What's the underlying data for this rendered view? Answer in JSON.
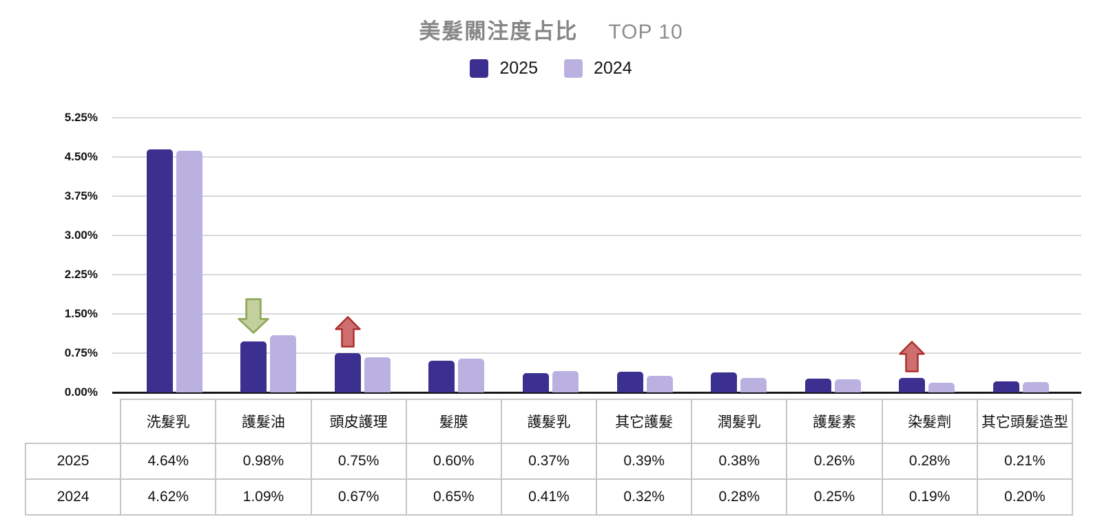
{
  "header": {
    "title_main": "美髮關注度占比",
    "title_suffix": "TOP 10",
    "legend": [
      {
        "label": "2025",
        "color": "#3b2f8f"
      },
      {
        "label": "2024",
        "color": "#bab1e1"
      }
    ]
  },
  "chart_data": {
    "type": "bar",
    "title": "美髮關注度占比 TOP 10",
    "xlabel": "",
    "ylabel": "",
    "ylim": [
      0,
      5.25
    ],
    "grid": true,
    "legend_position": "top",
    "y_ticks": [
      "5.25%",
      "4.50%",
      "3.75%",
      "3.00%",
      "2.25%",
      "1.50%",
      "0.75%",
      "0.00%"
    ],
    "categories": [
      "洗髮乳",
      "護髮油",
      "頭皮護理",
      "髮膜",
      "護髮乳",
      "其它護髮",
      "潤髮乳",
      "護髮素",
      "染髮劑",
      "其它頭髮造型"
    ],
    "series": [
      {
        "name": "2025",
        "color": "#3b2f8f",
        "values": [
          4.64,
          0.98,
          0.75,
          0.6,
          0.37,
          0.39,
          0.38,
          0.26,
          0.28,
          0.21
        ]
      },
      {
        "name": "2024",
        "color": "#bab1e1",
        "values": [
          4.62,
          1.09,
          0.67,
          0.65,
          0.41,
          0.32,
          0.28,
          0.25,
          0.19,
          0.2
        ]
      }
    ],
    "annotations": [
      {
        "category": "護髮油",
        "category_index": 1,
        "direction": "down",
        "fill": "#c3d09e",
        "stroke": "#90a95c"
      },
      {
        "category": "頭皮護理",
        "category_index": 2,
        "direction": "up",
        "fill": "#ce6e6e",
        "stroke": "#aa2b2b"
      },
      {
        "category": "染髮劑",
        "category_index": 8,
        "direction": "up",
        "fill": "#ce6e6e",
        "stroke": "#aa2b2b"
      }
    ]
  },
  "table": {
    "columns": [
      "洗髮乳",
      "護髮油",
      "頭皮護理",
      "髮膜",
      "護髮乳",
      "其它護髮",
      "潤髮乳",
      "護髮素",
      "染髮劑",
      "其它頭髮造型"
    ],
    "rows": [
      {
        "label": "2025",
        "values": [
          "4.64%",
          "0.98%",
          "0.75%",
          "0.60%",
          "0.37%",
          "0.39%",
          "0.38%",
          "0.26%",
          "0.28%",
          "0.21%"
        ]
      },
      {
        "label": "2024",
        "values": [
          "4.62%",
          "1.09%",
          "0.67%",
          "0.65%",
          "0.41%",
          "0.32%",
          "0.28%",
          "0.25%",
          "0.19%",
          "0.20%"
        ]
      }
    ]
  }
}
